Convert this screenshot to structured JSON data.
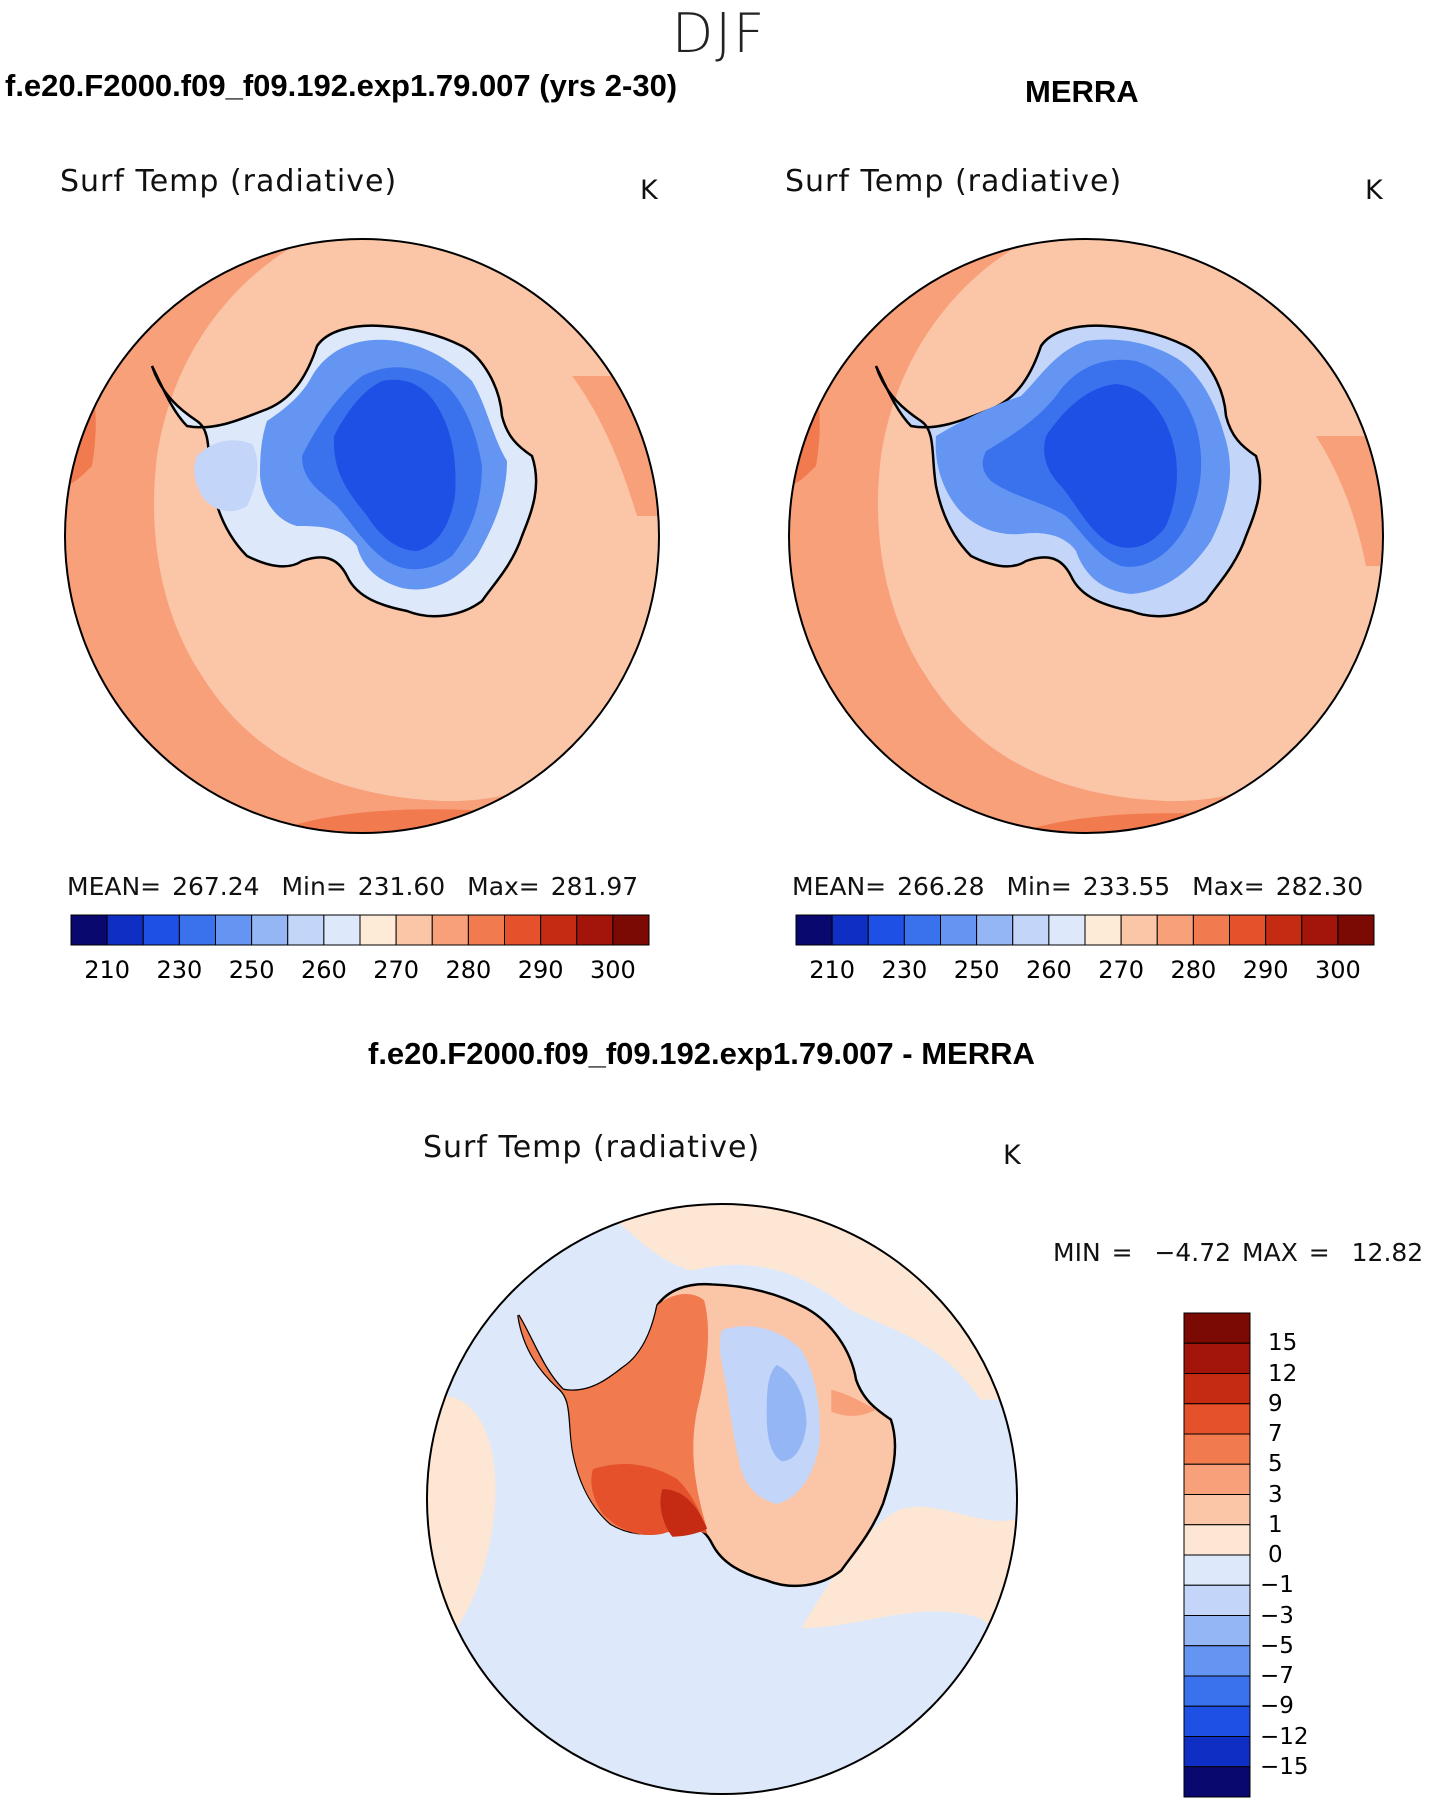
{
  "season": "DJF",
  "colors": {
    "abs_scale": [
      "#08086e",
      "#0f2fc4",
      "#1e50e6",
      "#3a72ee",
      "#6595f2",
      "#95b6f5",
      "#c3d5f8",
      "#dde9fa",
      "#fdebd8",
      "#fbc6a8",
      "#f8a07a",
      "#f17a4e",
      "#e4512b",
      "#c52a12",
      "#a3150a",
      "#7b0a04"
    ],
    "diff_scale": [
      "#08086e",
      "#0f2fc4",
      "#1e50e6",
      "#3a72ee",
      "#6595f2",
      "#95b6f5",
      "#c3d5f8",
      "#dde9fa",
      "#fde6d3",
      "#fbc6a8",
      "#f8a07a",
      "#f17a4e",
      "#e4512b",
      "#c52a12",
      "#a3150a",
      "#7b0a04"
    ]
  },
  "panels": [
    {
      "title": "f.e20.F2000.f09_f09.192.exp1.79.007 (yrs 2-30)",
      "variable": "Surf Temp (radiative)",
      "units": "K",
      "stats": {
        "mean_label": "MEAN=",
        "mean": "267.24",
        "min_label": "Min=",
        "min": "231.60",
        "max_label": "Max=",
        "max": "281.97"
      },
      "ticks": [
        "210",
        "230",
        "250",
        "260",
        "270",
        "280",
        "290",
        "300"
      ]
    },
    {
      "title": "MERRA",
      "variable": "Surf Temp (radiative)",
      "units": "K",
      "stats": {
        "mean_label": "MEAN=",
        "mean": "266.28",
        "min_label": "Min=",
        "min": "233.55",
        "max_label": "Max=",
        "max": "282.30"
      },
      "ticks": [
        "210",
        "230",
        "250",
        "260",
        "270",
        "280",
        "290",
        "300"
      ]
    }
  ],
  "diff": {
    "title": "f.e20.F2000.f09_f09.192.exp1.79.007 - MERRA",
    "variable": "Surf Temp (radiative)",
    "units": "K",
    "min_label": "MIN =",
    "min": "−4.72",
    "max_label": "MAX =",
    "max": "12.82",
    "labels": [
      "15",
      "12",
      "9",
      "7",
      "5",
      "3",
      "1",
      "0",
      "−1",
      "−3",
      "−5",
      "−7",
      "−9",
      "−12",
      "−15"
    ]
  }
}
